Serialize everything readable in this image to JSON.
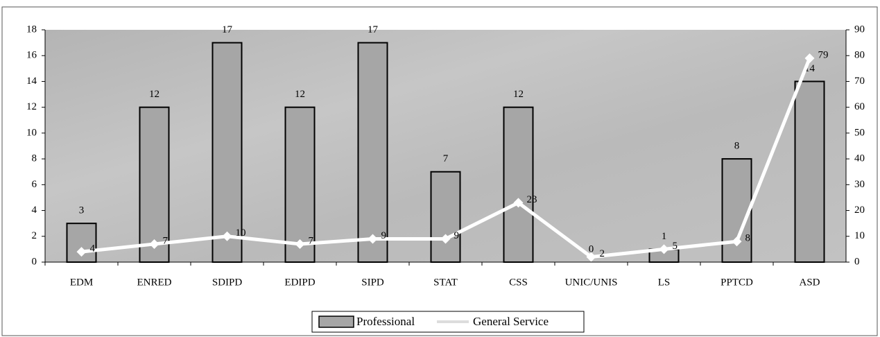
{
  "chart_data": {
    "type": "bar",
    "categories": [
      "EDM",
      "ENRED",
      "SDIPD",
      "EDIPD",
      "SIPD",
      "STAT",
      "CSS",
      "UNIC/UNIS",
      "LS",
      "PPTCD",
      "ASD"
    ],
    "series": [
      {
        "name": "Professional",
        "type": "bar",
        "color": "#a6a6a6",
        "values": [
          3,
          12,
          17,
          12,
          17,
          7,
          12,
          0,
          1,
          8,
          14
        ]
      },
      {
        "name": "General Service",
        "type": "line",
        "axis": "y2",
        "color": "#ffffff",
        "values": [
          4,
          7,
          10,
          7,
          9,
          9,
          23,
          2,
          5,
          8,
          79
        ]
      }
    ],
    "ylim": [
      0,
      18
    ],
    "yticks": [
      0,
      2,
      4,
      6,
      8,
      10,
      12,
      14,
      16,
      18
    ],
    "y2lim": [
      0,
      90
    ],
    "y2ticks": [
      0,
      10,
      20,
      30,
      40,
      50,
      60,
      70,
      80,
      90
    ],
    "legend": "bottom"
  }
}
